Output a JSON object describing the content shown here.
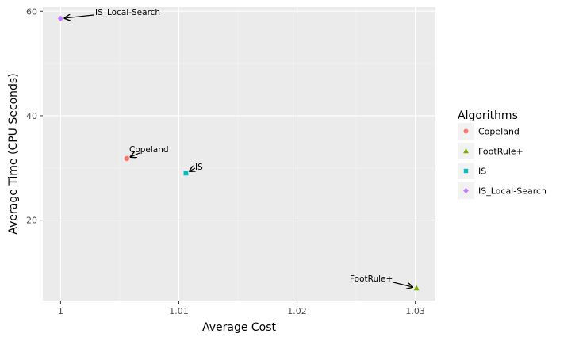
{
  "chart_data": {
    "type": "scatter",
    "xlabel": "Average Cost",
    "ylabel": "Average Time (CPU Seconds)",
    "xlim": [
      0.9985,
      1.0317
    ],
    "ylim": [
      4.6,
      60.8
    ],
    "x_ticks": [
      1.0,
      1.01,
      1.02,
      1.03
    ],
    "x_tick_labels": [
      "1",
      "1.01",
      "1.02",
      "1.03"
    ],
    "y_ticks": [
      20,
      40,
      60
    ],
    "y_tick_labels": [
      "20",
      "40",
      "60"
    ],
    "grid": true,
    "legend": {
      "title": "Algorithms",
      "position": "right"
    },
    "series": [
      {
        "name": "Copeland",
        "shape": "circle",
        "color": "#F8766D",
        "x": 1.0056,
        "y": 31.8,
        "annotation": "Copeland"
      },
      {
        "name": "FootRule+",
        "shape": "triangle",
        "color": "#7CAE00",
        "x": 1.0301,
        "y": 7.0,
        "annotation": "FootRule+"
      },
      {
        "name": "IS",
        "shape": "square",
        "color": "#00BFC4",
        "x": 1.0106,
        "y": 29.0,
        "annotation": "IS"
      },
      {
        "name": "IS_Local-Search",
        "shape": "diamond",
        "color": "#C77CFF",
        "x": 1.0,
        "y": 58.6,
        "annotation": "IS_Local-Search"
      }
    ]
  }
}
